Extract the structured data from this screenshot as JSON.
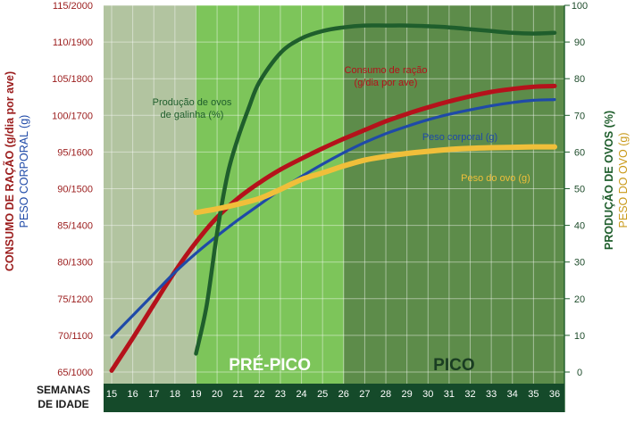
{
  "chart_data": {
    "type": "line",
    "x_title_line1": "SEMANAS",
    "x_title_line2": "DE IDADE",
    "x_ticks": [
      "15",
      "16",
      "17",
      "18",
      "19",
      "20",
      "21",
      "22",
      "23",
      "24",
      "25",
      "26",
      "27",
      "28",
      "29",
      "30",
      "31",
      "32",
      "33",
      "34",
      "35",
      "36"
    ],
    "left_ticks": [
      "65/1000",
      "70/1100",
      "75/1200",
      "80/1300",
      "85/1400",
      "90/1500",
      "95/1600",
      "100/1700",
      "105/1800",
      "110/1900",
      "115/2000"
    ],
    "right_ticks": [
      "0",
      "10",
      "20",
      "30",
      "40",
      "50",
      "60",
      "70",
      "80",
      "90",
      "100"
    ],
    "ylabel_left_1": "CONSUMO DE RAÇÃO (g/dia por ave)",
    "ylabel_left_2": "PESO CORPORAL (g)",
    "ylabel_right_1": "PRODUÇÃO DE OVOS (%)",
    "ylabel_right_2": "PESO DO OVO (g)",
    "feed_ylim": [
      65,
      115
    ],
    "bodyweight_ylim": [
      1000,
      2000
    ],
    "right_ylim": [
      0,
      100
    ],
    "xlim": [
      15,
      36
    ],
    "zones": [
      {
        "label": "",
        "from": 15,
        "to": 19,
        "color": "#b2c4a0"
      },
      {
        "label": "PRÉ-PICO",
        "from": 19,
        "to": 26,
        "color": "#7dc55a"
      },
      {
        "label": "PICO",
        "from": 26,
        "to": 36,
        "color": "#5d8c4a"
      }
    ],
    "series": [
      {
        "name": "Consumo de ração",
        "name_line2": "(g/dia por ave)",
        "axis": "feed",
        "color": "#b5121b",
        "x": [
          15,
          16,
          17,
          18,
          19,
          20,
          21,
          22,
          23,
          24,
          25,
          26,
          27,
          28,
          29,
          30,
          31,
          32,
          33,
          34,
          35,
          36
        ],
        "values": [
          65.2,
          69.6,
          74.2,
          78.7,
          82.7,
          86.1,
          88.7,
          90.8,
          92.6,
          94.1,
          95.5,
          96.8,
          98.0,
          99.2,
          100.2,
          101.1,
          101.9,
          102.6,
          103.2,
          103.6,
          103.9,
          104.0
        ]
      },
      {
        "name": "Peso corporal (g)",
        "axis": "bodyweight",
        "color": "#1f4aa8",
        "x": [
          15,
          16,
          17,
          18,
          19,
          20,
          21,
          22,
          23,
          24,
          25,
          26,
          27,
          28,
          29,
          30,
          31,
          32,
          33,
          34,
          35,
          36
        ],
        "values": [
          1095,
          1154,
          1213,
          1272,
          1324,
          1371,
          1415,
          1456,
          1497,
          1533,
          1567,
          1598,
          1626,
          1650,
          1670,
          1688,
          1703,
          1715,
          1726,
          1735,
          1741,
          1743
        ]
      },
      {
        "name": "Produção de ovos de galinha (%)",
        "axis": "right",
        "color": "#1f5e2c",
        "x": [
          19,
          19.5,
          20,
          20.5,
          21,
          21.5,
          22,
          23,
          24,
          25,
          26,
          27,
          28,
          29,
          30,
          31,
          32,
          33,
          34,
          35,
          36
        ],
        "values": [
          5,
          18,
          38,
          54,
          64,
          72,
          79,
          87,
          91,
          93,
          94,
          94.5,
          94.5,
          94.5,
          94.3,
          94,
          93.5,
          93,
          92.5,
          92.3,
          92.5
        ]
      },
      {
        "name": "Peso do ovo (g)",
        "axis": "right",
        "color": "#f0bf3a",
        "x": [
          19,
          20,
          21,
          22,
          23,
          24,
          25,
          26,
          27,
          28,
          29,
          30,
          31,
          32,
          33,
          34,
          35,
          36
        ],
        "values": [
          43.5,
          44.5,
          45.8,
          47.3,
          49.8,
          52.5,
          54.3,
          56.2,
          57.8,
          58.8,
          59.6,
          60.2,
          60.7,
          61.0,
          61.2,
          61.3,
          61.4,
          61.4
        ]
      }
    ]
  }
}
